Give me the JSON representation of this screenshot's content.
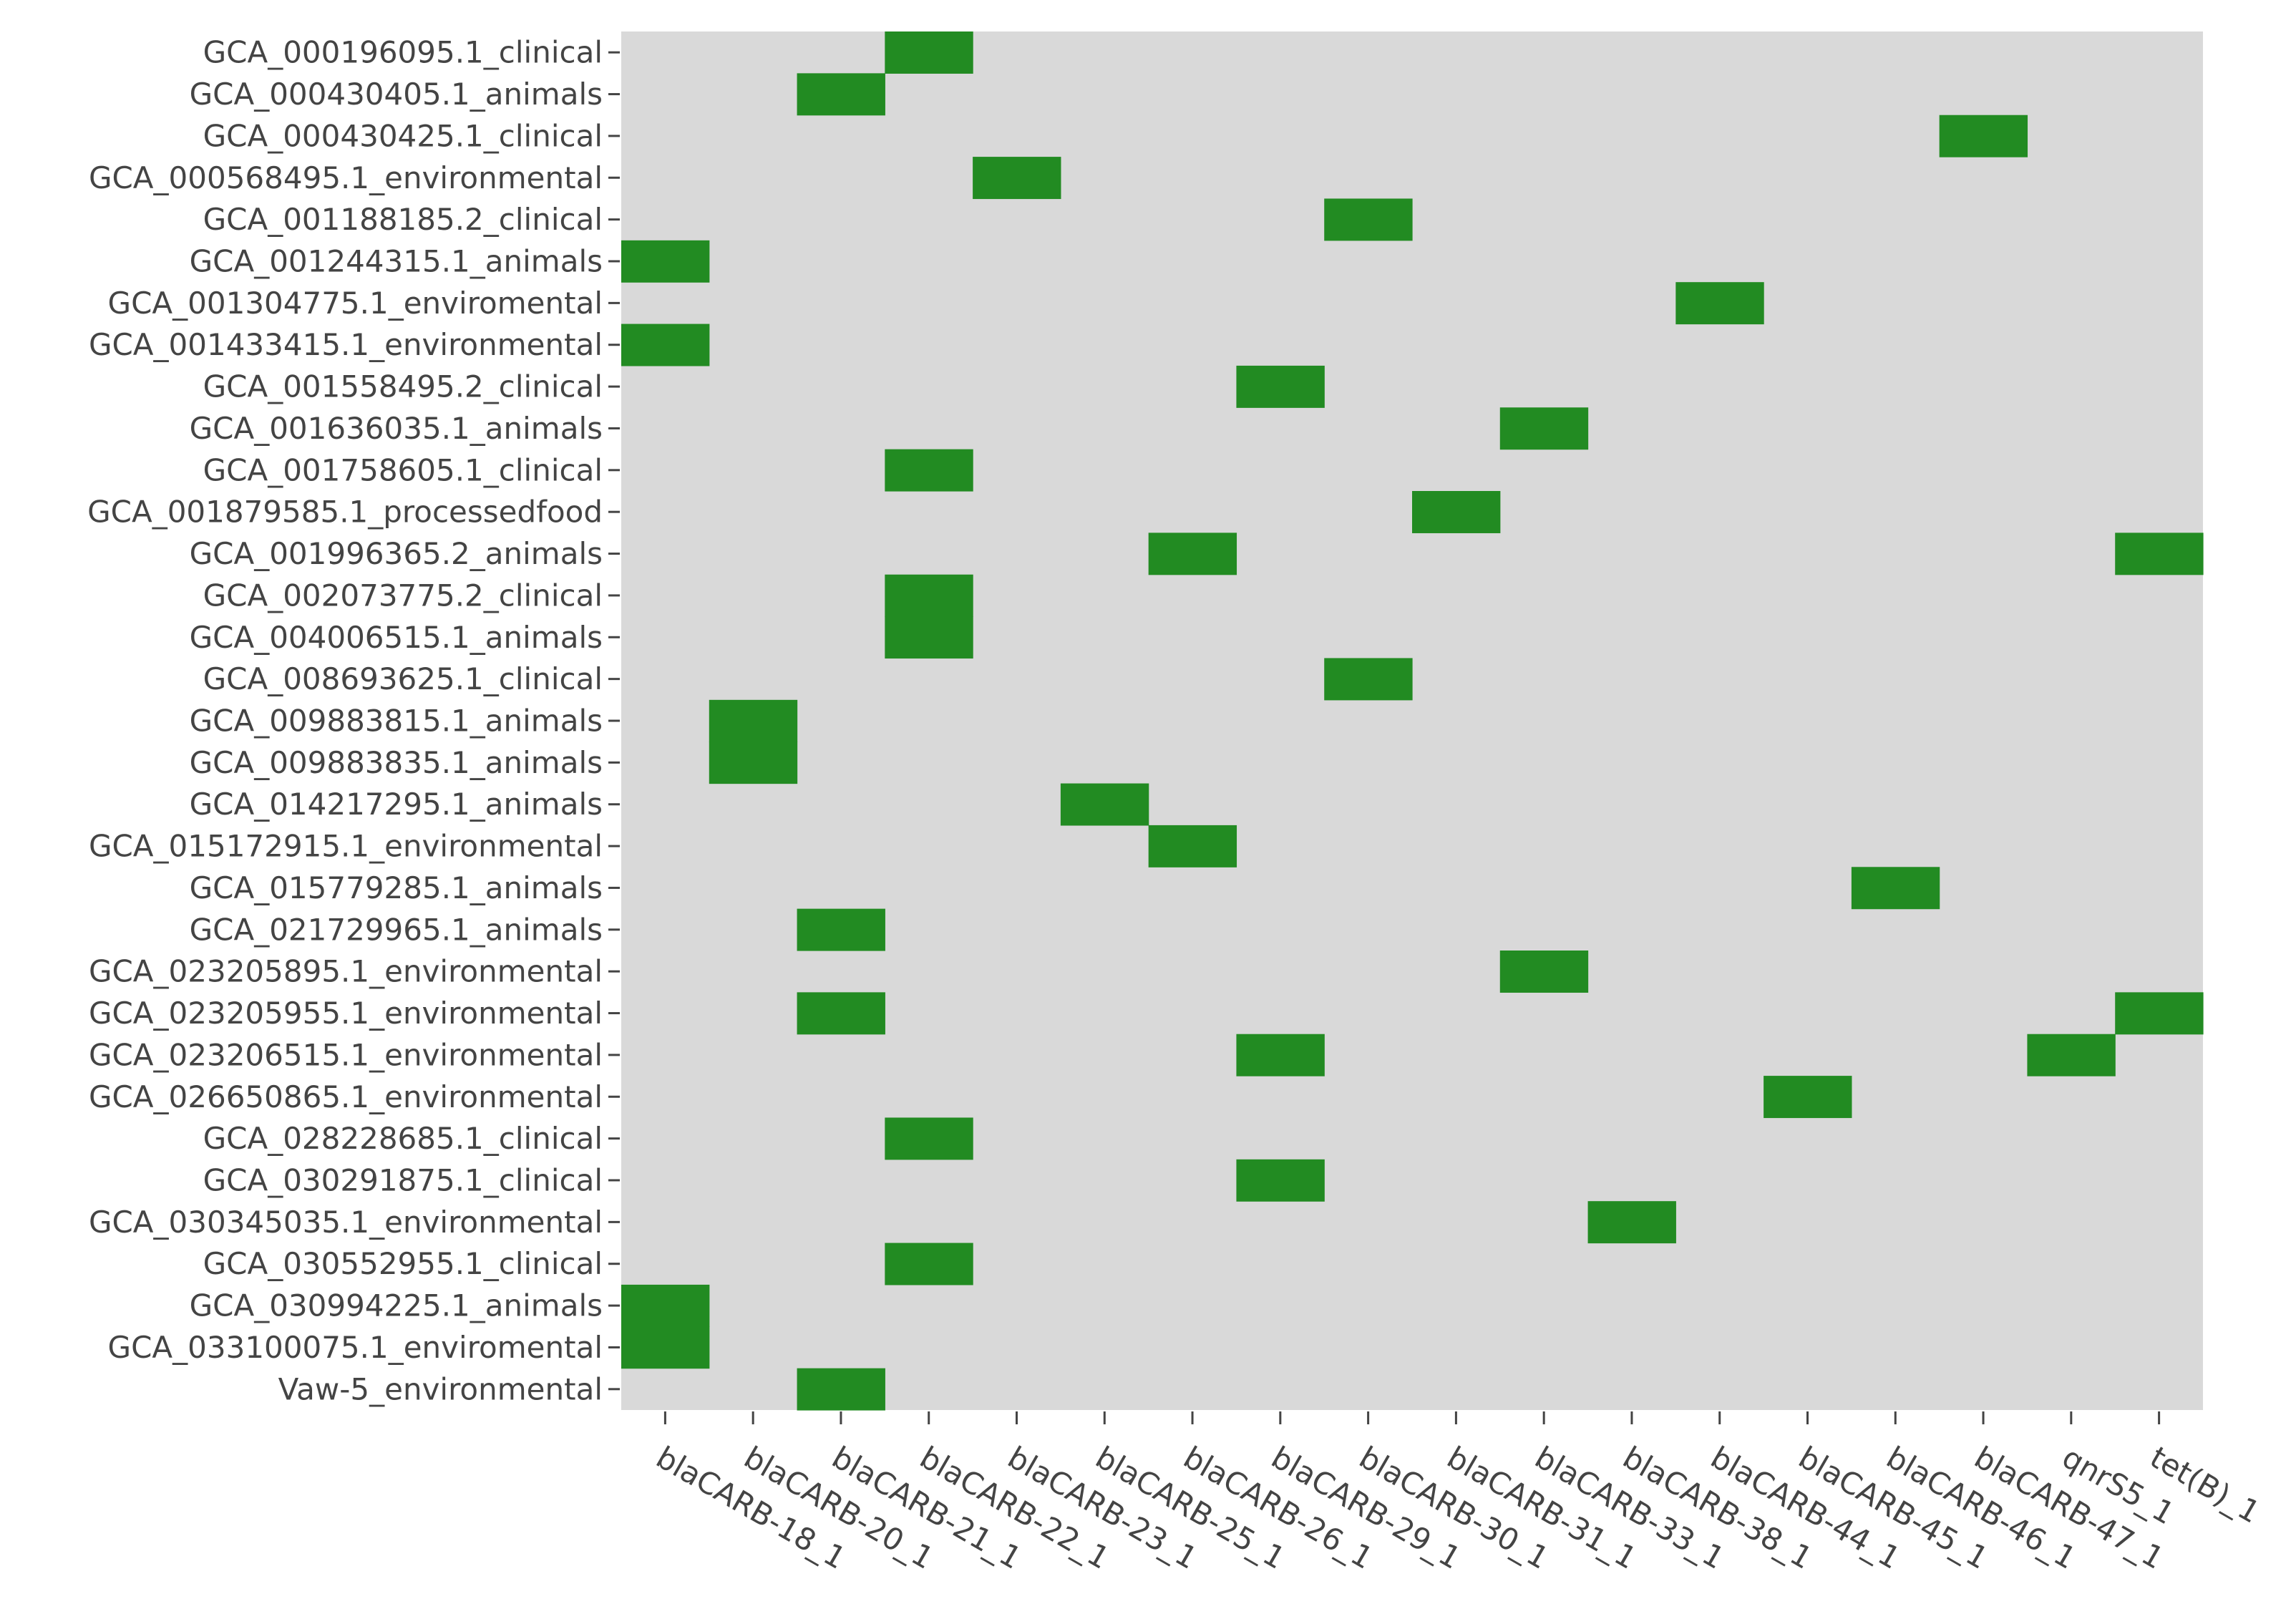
{
  "chart_data": {
    "type": "heatmap",
    "title": "",
    "xlabel": "",
    "ylabel": "",
    "colors": {
      "background": "#d9d9d9",
      "present": "#228b22",
      "tick": "#444444",
      "text": "#444444"
    },
    "columns": [
      "blaCARB-18_1",
      "blaCARB-20_1",
      "blaCARB-21_1",
      "blaCARB-22_1",
      "blaCARB-23_1",
      "blaCARB-25_1",
      "blaCARB-26_1",
      "blaCARB-29_1",
      "blaCARB-30_1",
      "blaCARB-31_1",
      "blaCARB-33_1",
      "blaCARB-38_1",
      "blaCARB-44_1",
      "blaCARB-45_1",
      "blaCARB-46_1",
      "blaCARB-47_1",
      "qnrS5_1",
      "tet(B)_1"
    ],
    "rows": [
      "GCA_000196095.1_clinical",
      "GCA_000430405.1_animals",
      "GCA_000430425.1_clinical",
      "GCA_000568495.1_environmental",
      "GCA_001188185.2_clinical",
      "GCA_001244315.1_animals",
      "GCA_001304775.1_enviromental",
      "GCA_001433415.1_environmental",
      "GCA_001558495.2_clinical",
      "GCA_001636035.1_animals",
      "GCA_001758605.1_clinical",
      "GCA_001879585.1_processedfood",
      "GCA_001996365.2_animals",
      "GCA_002073775.2_clinical",
      "GCA_004006515.1_animals",
      "GCA_008693625.1_clinical",
      "GCA_009883815.1_animals",
      "GCA_009883835.1_animals",
      "GCA_014217295.1_animals",
      "GCA_015172915.1_environmental",
      "GCA_015779285.1_animals",
      "GCA_021729965.1_animals",
      "GCA_023205895.1_environmental",
      "GCA_023205955.1_environmental",
      "GCA_023206515.1_environmental",
      "GCA_026650865.1_environmental",
      "GCA_028228685.1_clinical",
      "GCA_030291875.1_clinical",
      "GCA_030345035.1_environmental",
      "GCA_030552955.1_clinical",
      "GCA_030994225.1_animals",
      "GCA_033100075.1_enviromental",
      "Vaw-5_environmental"
    ],
    "values": [
      [
        0,
        0,
        0,
        1,
        0,
        0,
        0,
        0,
        0,
        0,
        0,
        0,
        0,
        0,
        0,
        0,
        0,
        0
      ],
      [
        0,
        0,
        1,
        0,
        0,
        0,
        0,
        0,
        0,
        0,
        0,
        0,
        0,
        0,
        0,
        0,
        0,
        0
      ],
      [
        0,
        0,
        0,
        0,
        0,
        0,
        0,
        0,
        0,
        0,
        0,
        0,
        0,
        0,
        0,
        1,
        0,
        0
      ],
      [
        0,
        0,
        0,
        0,
        1,
        0,
        0,
        0,
        0,
        0,
        0,
        0,
        0,
        0,
        0,
        0,
        0,
        0
      ],
      [
        0,
        0,
        0,
        0,
        0,
        0,
        0,
        0,
        1,
        0,
        0,
        0,
        0,
        0,
        0,
        0,
        0,
        0
      ],
      [
        1,
        0,
        0,
        0,
        0,
        0,
        0,
        0,
        0,
        0,
        0,
        0,
        0,
        0,
        0,
        0,
        0,
        0
      ],
      [
        0,
        0,
        0,
        0,
        0,
        0,
        0,
        0,
        0,
        0,
        0,
        0,
        1,
        0,
        0,
        0,
        0,
        0
      ],
      [
        1,
        0,
        0,
        0,
        0,
        0,
        0,
        0,
        0,
        0,
        0,
        0,
        0,
        0,
        0,
        0,
        0,
        0
      ],
      [
        0,
        0,
        0,
        0,
        0,
        0,
        0,
        1,
        0,
        0,
        0,
        0,
        0,
        0,
        0,
        0,
        0,
        0
      ],
      [
        0,
        0,
        0,
        0,
        0,
        0,
        0,
        0,
        0,
        0,
        1,
        0,
        0,
        0,
        0,
        0,
        0,
        0
      ],
      [
        0,
        0,
        0,
        1,
        0,
        0,
        0,
        0,
        0,
        0,
        0,
        0,
        0,
        0,
        0,
        0,
        0,
        0
      ],
      [
        0,
        0,
        0,
        0,
        0,
        0,
        0,
        0,
        0,
        1,
        0,
        0,
        0,
        0,
        0,
        0,
        0,
        0
      ],
      [
        0,
        0,
        0,
        0,
        0,
        0,
        1,
        0,
        0,
        0,
        0,
        0,
        0,
        0,
        0,
        0,
        0,
        1
      ],
      [
        0,
        0,
        0,
        1,
        0,
        0,
        0,
        0,
        0,
        0,
        0,
        0,
        0,
        0,
        0,
        0,
        0,
        0
      ],
      [
        0,
        0,
        0,
        1,
        0,
        0,
        0,
        0,
        0,
        0,
        0,
        0,
        0,
        0,
        0,
        0,
        0,
        0
      ],
      [
        0,
        0,
        0,
        0,
        0,
        0,
        0,
        0,
        1,
        0,
        0,
        0,
        0,
        0,
        0,
        0,
        0,
        0
      ],
      [
        0,
        1,
        0,
        0,
        0,
        0,
        0,
        0,
        0,
        0,
        0,
        0,
        0,
        0,
        0,
        0,
        0,
        0
      ],
      [
        0,
        1,
        0,
        0,
        0,
        0,
        0,
        0,
        0,
        0,
        0,
        0,
        0,
        0,
        0,
        0,
        0,
        0
      ],
      [
        0,
        0,
        0,
        0,
        0,
        1,
        0,
        0,
        0,
        0,
        0,
        0,
        0,
        0,
        0,
        0,
        0,
        0
      ],
      [
        0,
        0,
        0,
        0,
        0,
        0,
        1,
        0,
        0,
        0,
        0,
        0,
        0,
        0,
        0,
        0,
        0,
        0
      ],
      [
        0,
        0,
        0,
        0,
        0,
        0,
        0,
        0,
        0,
        0,
        0,
        0,
        0,
        0,
        1,
        0,
        0,
        0
      ],
      [
        0,
        0,
        1,
        0,
        0,
        0,
        0,
        0,
        0,
        0,
        0,
        0,
        0,
        0,
        0,
        0,
        0,
        0
      ],
      [
        0,
        0,
        0,
        0,
        0,
        0,
        0,
        0,
        0,
        0,
        1,
        0,
        0,
        0,
        0,
        0,
        0,
        0
      ],
      [
        0,
        0,
        1,
        0,
        0,
        0,
        0,
        0,
        0,
        0,
        0,
        0,
        0,
        0,
        0,
        0,
        0,
        1
      ],
      [
        0,
        0,
        0,
        0,
        0,
        0,
        0,
        1,
        0,
        0,
        0,
        0,
        0,
        0,
        0,
        0,
        1,
        0
      ],
      [
        0,
        0,
        0,
        0,
        0,
        0,
        0,
        0,
        0,
        0,
        0,
        0,
        0,
        1,
        0,
        0,
        0,
        0
      ],
      [
        0,
        0,
        0,
        1,
        0,
        0,
        0,
        0,
        0,
        0,
        0,
        0,
        0,
        0,
        0,
        0,
        0,
        0
      ],
      [
        0,
        0,
        0,
        0,
        0,
        0,
        0,
        1,
        0,
        0,
        0,
        0,
        0,
        0,
        0,
        0,
        0,
        0
      ],
      [
        0,
        0,
        0,
        0,
        0,
        0,
        0,
        0,
        0,
        0,
        0,
        1,
        0,
        0,
        0,
        0,
        0,
        0
      ],
      [
        0,
        0,
        0,
        1,
        0,
        0,
        0,
        0,
        0,
        0,
        0,
        0,
        0,
        0,
        0,
        0,
        0,
        0
      ],
      [
        1,
        0,
        0,
        0,
        0,
        0,
        0,
        0,
        0,
        0,
        0,
        0,
        0,
        0,
        0,
        0,
        0,
        0
      ],
      [
        1,
        0,
        0,
        0,
        0,
        0,
        0,
        0,
        0,
        0,
        0,
        0,
        0,
        0,
        0,
        0,
        0,
        0
      ],
      [
        0,
        0,
        1,
        0,
        0,
        0,
        0,
        0,
        0,
        0,
        0,
        0,
        0,
        0,
        0,
        0,
        0,
        0
      ]
    ],
    "grid": false,
    "legend": "none"
  }
}
